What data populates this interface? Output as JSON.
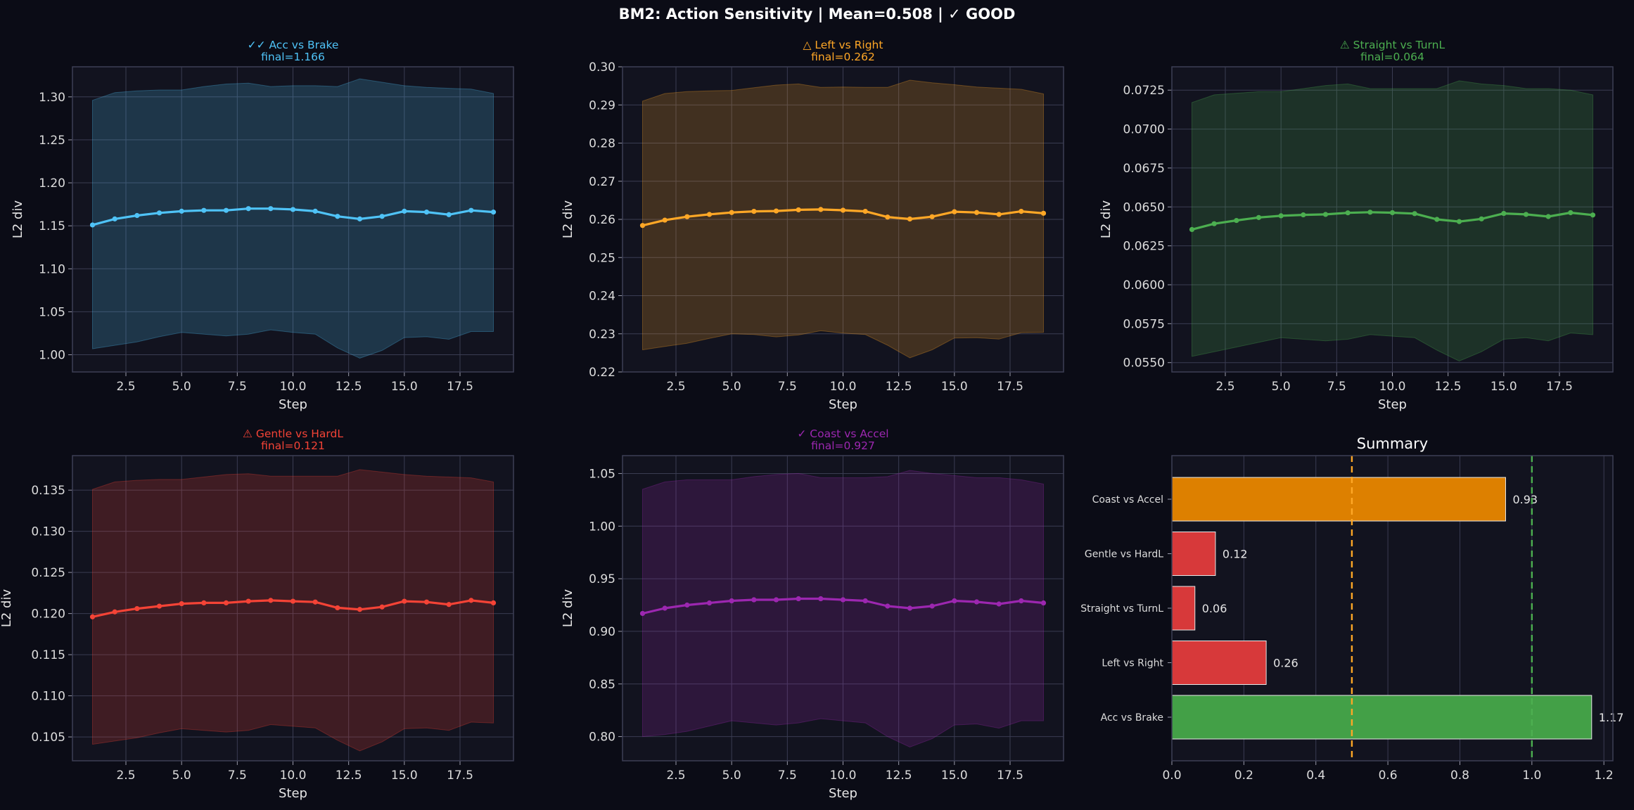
{
  "suptitle": "BM2: Action Sensitivity | Mean=0.508 | ✓ GOOD",
  "chart_data": [
    {
      "type": "line",
      "title": "✓✓ Acc vs Brake",
      "subtitle": "final=1.166",
      "xlabel": "Step",
      "ylabel": "L2 div",
      "color": "#4fc3f7",
      "x": [
        1,
        2,
        3,
        4,
        5,
        6,
        7,
        8,
        9,
        10,
        11,
        12,
        13,
        14,
        15,
        16,
        17,
        18,
        19
      ],
      "values": [
        1.151,
        1.158,
        1.162,
        1.165,
        1.167,
        1.168,
        1.168,
        1.17,
        1.17,
        1.169,
        1.167,
        1.161,
        1.158,
        1.161,
        1.167,
        1.166,
        1.163,
        1.168,
        1.166
      ],
      "band_upper": [
        1.296,
        1.305,
        1.307,
        1.308,
        1.308,
        1.312,
        1.315,
        1.316,
        1.312,
        1.313,
        1.313,
        1.312,
        1.321,
        1.317,
        1.313,
        1.311,
        1.31,
        1.309,
        1.304
      ],
      "band_lower": [
        1.007,
        1.011,
        1.015,
        1.021,
        1.026,
        1.024,
        1.022,
        1.024,
        1.029,
        1.026,
        1.024,
        1.008,
        0.996,
        1.005,
        1.02,
        1.021,
        1.018,
        1.027,
        1.027
      ],
      "xlim": [
        0.1,
        19.9
      ],
      "ylim": [
        0.98,
        1.335
      ],
      "xticks": [
        2.5,
        5.0,
        7.5,
        10.0,
        12.5,
        15.0,
        17.5
      ],
      "xtick_labels": [
        "2.5",
        "5.0",
        "7.5",
        "10.0",
        "12.5",
        "15.0",
        "17.5"
      ],
      "yticks": [
        1.0,
        1.05,
        1.1,
        1.15,
        1.2,
        1.25,
        1.3
      ],
      "ytick_labels": [
        "1.00",
        "1.05",
        "1.10",
        "1.15",
        "1.20",
        "1.25",
        "1.30"
      ],
      "grid": true
    },
    {
      "type": "line",
      "title": "△ Left vs Right",
      "subtitle": "final=0.262",
      "xlabel": "Step",
      "ylabel": "L2 div",
      "color": "#ffa726",
      "x": [
        1,
        2,
        3,
        4,
        5,
        6,
        7,
        8,
        9,
        10,
        11,
        12,
        13,
        14,
        15,
        16,
        17,
        18,
        19
      ],
      "values": [
        0.2584,
        0.2598,
        0.2607,
        0.2613,
        0.2618,
        0.2621,
        0.2622,
        0.2625,
        0.2626,
        0.2624,
        0.2621,
        0.2606,
        0.2601,
        0.2607,
        0.262,
        0.2618,
        0.2613,
        0.2621,
        0.2616
      ],
      "band_upper": [
        0.291,
        0.293,
        0.2935,
        0.2937,
        0.2938,
        0.2945,
        0.2952,
        0.2955,
        0.2946,
        0.2947,
        0.2946,
        0.2946,
        0.2965,
        0.2958,
        0.2953,
        0.2947,
        0.2944,
        0.2941,
        0.2929
      ],
      "band_lower": [
        0.2258,
        0.2267,
        0.2275,
        0.2288,
        0.23,
        0.2298,
        0.2292,
        0.2297,
        0.2308,
        0.2302,
        0.2298,
        0.227,
        0.2237,
        0.2258,
        0.2289,
        0.229,
        0.2286,
        0.2303,
        0.2304
      ],
      "xlim": [
        0.1,
        19.9
      ],
      "ylim": [
        0.22,
        0.3
      ],
      "xticks": [
        2.5,
        5.0,
        7.5,
        10.0,
        12.5,
        15.0,
        17.5
      ],
      "xtick_labels": [
        "2.5",
        "5.0",
        "7.5",
        "10.0",
        "12.5",
        "15.0",
        "17.5"
      ],
      "yticks": [
        0.22,
        0.23,
        0.24,
        0.25,
        0.26,
        0.27,
        0.28,
        0.29,
        0.3
      ],
      "ytick_labels": [
        "0.22",
        "0.23",
        "0.24",
        "0.25",
        "0.26",
        "0.27",
        "0.28",
        "0.29",
        "0.30"
      ],
      "grid": true
    },
    {
      "type": "line",
      "title": "⚠ Straight vs TurnL",
      "subtitle": "final=0.064",
      "xlabel": "Step",
      "ylabel": "L2 div",
      "color": "#4caf50",
      "x": [
        1,
        2,
        3,
        4,
        5,
        6,
        7,
        8,
        9,
        10,
        11,
        12,
        13,
        14,
        15,
        16,
        17,
        18,
        19
      ],
      "values": [
        0.06355,
        0.06392,
        0.06413,
        0.06432,
        0.06443,
        0.06449,
        0.06452,
        0.06462,
        0.06466,
        0.06463,
        0.06457,
        0.0642,
        0.06406,
        0.06423,
        0.06458,
        0.06452,
        0.06438,
        0.06463,
        0.06448
      ],
      "band_upper": [
        0.0717,
        0.0722,
        0.0723,
        0.0724,
        0.0724,
        0.0726,
        0.0728,
        0.0729,
        0.0726,
        0.0726,
        0.0726,
        0.0726,
        0.0731,
        0.0729,
        0.0728,
        0.0726,
        0.0726,
        0.0725,
        0.0722
      ],
      "band_lower": [
        0.0554,
        0.0557,
        0.056,
        0.0563,
        0.0566,
        0.0565,
        0.0564,
        0.0565,
        0.0568,
        0.0567,
        0.0566,
        0.0558,
        0.0551,
        0.0557,
        0.0565,
        0.0566,
        0.0564,
        0.0569,
        0.0568
      ],
      "xlim": [
        0.1,
        19.9
      ],
      "ylim": [
        0.0544,
        0.074
      ],
      "xticks": [
        2.5,
        5.0,
        7.5,
        10.0,
        12.5,
        15.0,
        17.5
      ],
      "xtick_labels": [
        "2.5",
        "5.0",
        "7.5",
        "10.0",
        "12.5",
        "15.0",
        "17.5"
      ],
      "yticks": [
        0.055,
        0.0575,
        0.06,
        0.0625,
        0.065,
        0.0675,
        0.07,
        0.0725
      ],
      "ytick_labels": [
        "0.0550",
        "0.0575",
        "0.0600",
        "0.0625",
        "0.0650",
        "0.0675",
        "0.0700",
        "0.0725"
      ],
      "grid": true
    },
    {
      "type": "line",
      "title": "⚠ Gentle vs HardL",
      "subtitle": "final=0.121",
      "xlabel": "Step",
      "ylabel": "L2 div",
      "color": "#f44336",
      "x": [
        1,
        2,
        3,
        4,
        5,
        6,
        7,
        8,
        9,
        10,
        11,
        12,
        13,
        14,
        15,
        16,
        17,
        18,
        19
      ],
      "values": [
        0.1196,
        0.1202,
        0.1206,
        0.1209,
        0.1212,
        0.1213,
        0.1213,
        0.1215,
        0.1216,
        0.1215,
        0.1214,
        0.1207,
        0.1205,
        0.1208,
        0.1215,
        0.1214,
        0.1211,
        0.1216,
        0.1213
      ],
      "band_upper": [
        0.1351,
        0.136,
        0.1362,
        0.1363,
        0.1363,
        0.1366,
        0.1369,
        0.137,
        0.1367,
        0.1367,
        0.1367,
        0.1367,
        0.1375,
        0.1372,
        0.1369,
        0.1367,
        0.1366,
        0.1365,
        0.136
      ],
      "band_lower": [
        0.1041,
        0.1045,
        0.1049,
        0.1055,
        0.106,
        0.1058,
        0.1056,
        0.1058,
        0.1065,
        0.1063,
        0.1061,
        0.1046,
        0.1033,
        0.1044,
        0.106,
        0.1061,
        0.1058,
        0.1068,
        0.1067
      ],
      "xlim": [
        0.1,
        19.9
      ],
      "ylim": [
        0.1021,
        0.1392
      ],
      "xticks": [
        2.5,
        5.0,
        7.5,
        10.0,
        12.5,
        15.0,
        17.5
      ],
      "xtick_labels": [
        "2.5",
        "5.0",
        "7.5",
        "10.0",
        "12.5",
        "15.0",
        "17.5"
      ],
      "yticks": [
        0.105,
        0.11,
        0.115,
        0.12,
        0.125,
        0.13,
        0.135
      ],
      "ytick_labels": [
        "0.105",
        "0.110",
        "0.115",
        "0.120",
        "0.125",
        "0.130",
        "0.135"
      ],
      "grid": true
    },
    {
      "type": "line",
      "title": "✓ Coast vs Accel",
      "subtitle": "final=0.927",
      "xlabel": "Step",
      "ylabel": "L2 div",
      "color": "#9c27b0",
      "x": [
        1,
        2,
        3,
        4,
        5,
        6,
        7,
        8,
        9,
        10,
        11,
        12,
        13,
        14,
        15,
        16,
        17,
        18,
        19
      ],
      "values": [
        0.917,
        0.922,
        0.925,
        0.927,
        0.929,
        0.93,
        0.93,
        0.931,
        0.931,
        0.93,
        0.929,
        0.924,
        0.922,
        0.924,
        0.929,
        0.928,
        0.926,
        0.929,
        0.927
      ],
      "band_upper": [
        1.035,
        1.042,
        1.044,
        1.044,
        1.044,
        1.047,
        1.049,
        1.05,
        1.046,
        1.046,
        1.046,
        1.047,
        1.053,
        1.05,
        1.048,
        1.046,
        1.046,
        1.044,
        1.04
      ],
      "band_lower": [
        0.8,
        0.802,
        0.805,
        0.81,
        0.815,
        0.813,
        0.811,
        0.813,
        0.817,
        0.815,
        0.813,
        0.8,
        0.79,
        0.798,
        0.811,
        0.812,
        0.808,
        0.815,
        0.815
      ],
      "xlim": [
        0.1,
        19.9
      ],
      "ylim": [
        0.777,
        1.067
      ],
      "xticks": [
        2.5,
        5.0,
        7.5,
        10.0,
        12.5,
        15.0,
        17.5
      ],
      "xtick_labels": [
        "2.5",
        "5.0",
        "7.5",
        "10.0",
        "12.5",
        "15.0",
        "17.5"
      ],
      "yticks": [
        0.8,
        0.85,
        0.9,
        0.95,
        1.0,
        1.05
      ],
      "ytick_labels": [
        "0.80",
        "0.85",
        "0.90",
        "0.95",
        "1.00",
        "1.05"
      ],
      "grid": true
    },
    {
      "type": "bar",
      "orientation": "horizontal",
      "title": "Summary",
      "categories": [
        "Acc vs Brake",
        "Left vs Right",
        "Straight vs TurnL",
        "Gentle vs HardL",
        "Coast vs Accel"
      ],
      "values": [
        1.166,
        0.262,
        0.064,
        0.121,
        0.927
      ],
      "value_labels": [
        "1.17",
        "0.26",
        "0.06",
        "0.12",
        "0.93"
      ],
      "bar_colors": [
        "#43a047",
        "#d7393a",
        "#d7393a",
        "#d7393a",
        "#dd8000"
      ],
      "reference_lines": [
        {
          "x": 0.5,
          "color": "#ffa726",
          "style": "dashed"
        },
        {
          "x": 1.0,
          "color": "#4caf50",
          "style": "dashed"
        }
      ],
      "xlim": [
        0.0,
        1.225
      ],
      "xticks": [
        0.0,
        0.2,
        0.4,
        0.6,
        0.8,
        1.0,
        1.2
      ],
      "xtick_labels": [
        "0.0",
        "0.2",
        "0.4",
        "0.6",
        "0.8",
        "1.0",
        "1.2"
      ],
      "grid": true
    }
  ]
}
